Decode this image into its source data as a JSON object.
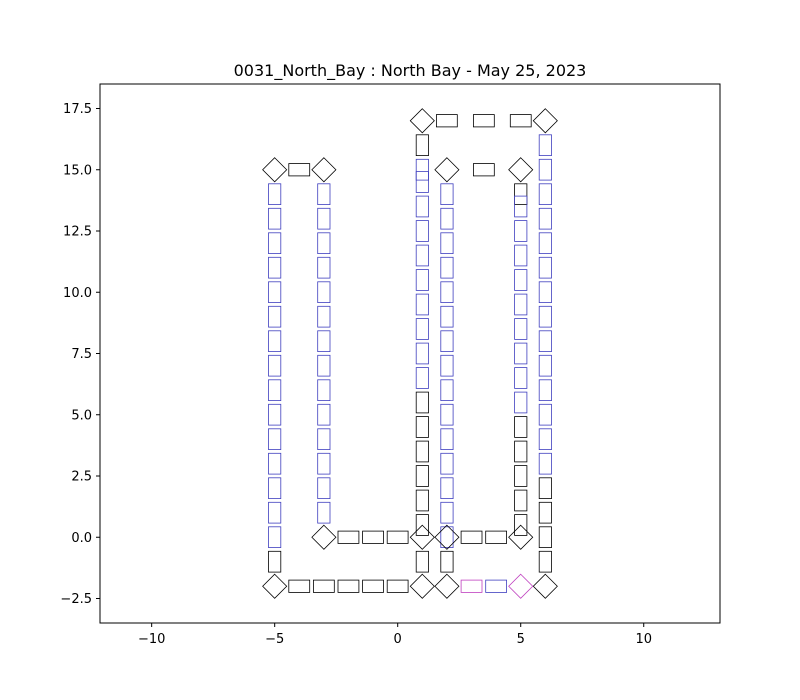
{
  "chart_data": {
    "type": "scatter",
    "title": "0031_North_Bay : North Bay - May 25, 2023",
    "xlabel": "",
    "ylabel": "",
    "xlim": [
      -12.1,
      13.1
    ],
    "ylim": [
      -3.5,
      18.5
    ],
    "xticks": [
      -10,
      -5,
      0,
      5,
      10
    ],
    "yticks": [
      -2.5,
      0.0,
      2.5,
      5.0,
      7.5,
      10.0,
      12.5,
      15.0,
      17.5
    ],
    "xtick_labels": [
      "−10",
      "−5",
      "0",
      "5",
      "10"
    ],
    "ytick_labels": [
      "−2.5",
      "0.0",
      "2.5",
      "5.0",
      "7.5",
      "10.0",
      "12.5",
      "15.0",
      "17.5"
    ],
    "grid": false,
    "colors": {
      "black": "#000000",
      "blue": "#3f3fbf",
      "purple": "#bf3fbf"
    },
    "series": [
      {
        "marker": "vertical-rectangle",
        "color": "black",
        "points": [
          [
            -5,
            -1
          ],
          [
            1,
            -1
          ],
          [
            1,
            0.5
          ],
          [
            1,
            1.5
          ],
          [
            1,
            2.5
          ],
          [
            1,
            3.5
          ],
          [
            1,
            4.5
          ],
          [
            1,
            5.5
          ],
          [
            1,
            16
          ],
          [
            2,
            -1
          ],
          [
            5,
            0.5
          ],
          [
            5,
            1.5
          ],
          [
            5,
            2.5
          ],
          [
            5,
            3.5
          ],
          [
            5,
            4.5
          ],
          [
            5,
            14
          ],
          [
            6,
            -1
          ],
          [
            6,
            0
          ],
          [
            6,
            1
          ],
          [
            6,
            2
          ]
        ]
      },
      {
        "marker": "vertical-rectangle",
        "color": "blue",
        "points": [
          [
            -5,
            0
          ],
          [
            -5,
            1
          ],
          [
            -5,
            2
          ],
          [
            -5,
            3
          ],
          [
            -5,
            4
          ],
          [
            -5,
            5
          ],
          [
            -5,
            6
          ],
          [
            -5,
            7
          ],
          [
            -5,
            8
          ],
          [
            -5,
            9
          ],
          [
            -5,
            10
          ],
          [
            -5,
            11
          ],
          [
            -5,
            12
          ],
          [
            -5,
            13
          ],
          [
            -5,
            14
          ],
          [
            -3,
            1
          ],
          [
            -3,
            2
          ],
          [
            -3,
            3
          ],
          [
            -3,
            4
          ],
          [
            -3,
            5
          ],
          [
            -3,
            6
          ],
          [
            -3,
            7
          ],
          [
            -3,
            8
          ],
          [
            -3,
            9
          ],
          [
            -3,
            10
          ],
          [
            -3,
            11
          ],
          [
            -3,
            12
          ],
          [
            -3,
            13
          ],
          [
            -3,
            14
          ],
          [
            1,
            6.5
          ],
          [
            1,
            7.5
          ],
          [
            1,
            8.5
          ],
          [
            1,
            9.5
          ],
          [
            1,
            10.5
          ],
          [
            1,
            11.5
          ],
          [
            1,
            12.5
          ],
          [
            1,
            13.5
          ],
          [
            1,
            14.5
          ],
          [
            1,
            15
          ],
          [
            2,
            0
          ],
          [
            2,
            1
          ],
          [
            2,
            2
          ],
          [
            2,
            3
          ],
          [
            2,
            4
          ],
          [
            2,
            5
          ],
          [
            2,
            6
          ],
          [
            2,
            7
          ],
          [
            2,
            8
          ],
          [
            2,
            9
          ],
          [
            2,
            10
          ],
          [
            2,
            11
          ],
          [
            2,
            12
          ],
          [
            2,
            13
          ],
          [
            2,
            14
          ],
          [
            5,
            5.5
          ],
          [
            5,
            6.5
          ],
          [
            5,
            7.5
          ],
          [
            5,
            8.5
          ],
          [
            5,
            9.5
          ],
          [
            5,
            10.5
          ],
          [
            5,
            11.5
          ],
          [
            5,
            12.5
          ],
          [
            5,
            13.5
          ],
          [
            6,
            3
          ],
          [
            6,
            4
          ],
          [
            6,
            5
          ],
          [
            6,
            6
          ],
          [
            6,
            7
          ],
          [
            6,
            8
          ],
          [
            6,
            9
          ],
          [
            6,
            10
          ],
          [
            6,
            11
          ],
          [
            6,
            12
          ],
          [
            6,
            13
          ],
          [
            6,
            14
          ],
          [
            6,
            15
          ],
          [
            6,
            16
          ]
        ]
      },
      {
        "marker": "horizontal-rectangle",
        "color": "black",
        "points": [
          [
            -4,
            -2
          ],
          [
            -3,
            -2
          ],
          [
            -2,
            -2
          ],
          [
            -1,
            -2
          ],
          [
            0,
            -2
          ],
          [
            -2,
            0
          ],
          [
            -1,
            0
          ],
          [
            0,
            0
          ],
          [
            3,
            0
          ],
          [
            4,
            0
          ],
          [
            -4,
            15
          ],
          [
            3.5,
            15
          ],
          [
            2,
            17
          ],
          [
            3.5,
            17
          ],
          [
            5,
            17
          ]
        ]
      },
      {
        "marker": "horizontal-rectangle",
        "color": "purple",
        "points": [
          [
            3,
            -2
          ]
        ]
      },
      {
        "marker": "horizontal-rectangle",
        "color": "blue",
        "points": [
          [
            4,
            -2
          ]
        ]
      },
      {
        "marker": "diamond",
        "color": "black",
        "points": [
          [
            -5,
            -2
          ],
          [
            1,
            -2
          ],
          [
            2,
            -2
          ],
          [
            6,
            -2
          ],
          [
            -3,
            0
          ],
          [
            1,
            0
          ],
          [
            2,
            0
          ],
          [
            5,
            0
          ],
          [
            -5,
            15
          ],
          [
            -3,
            15
          ],
          [
            2,
            15
          ],
          [
            5,
            15
          ],
          [
            1,
            17
          ],
          [
            6,
            17
          ]
        ]
      },
      {
        "marker": "diamond",
        "color": "purple",
        "points": [
          [
            5,
            -2
          ]
        ]
      }
    ]
  }
}
